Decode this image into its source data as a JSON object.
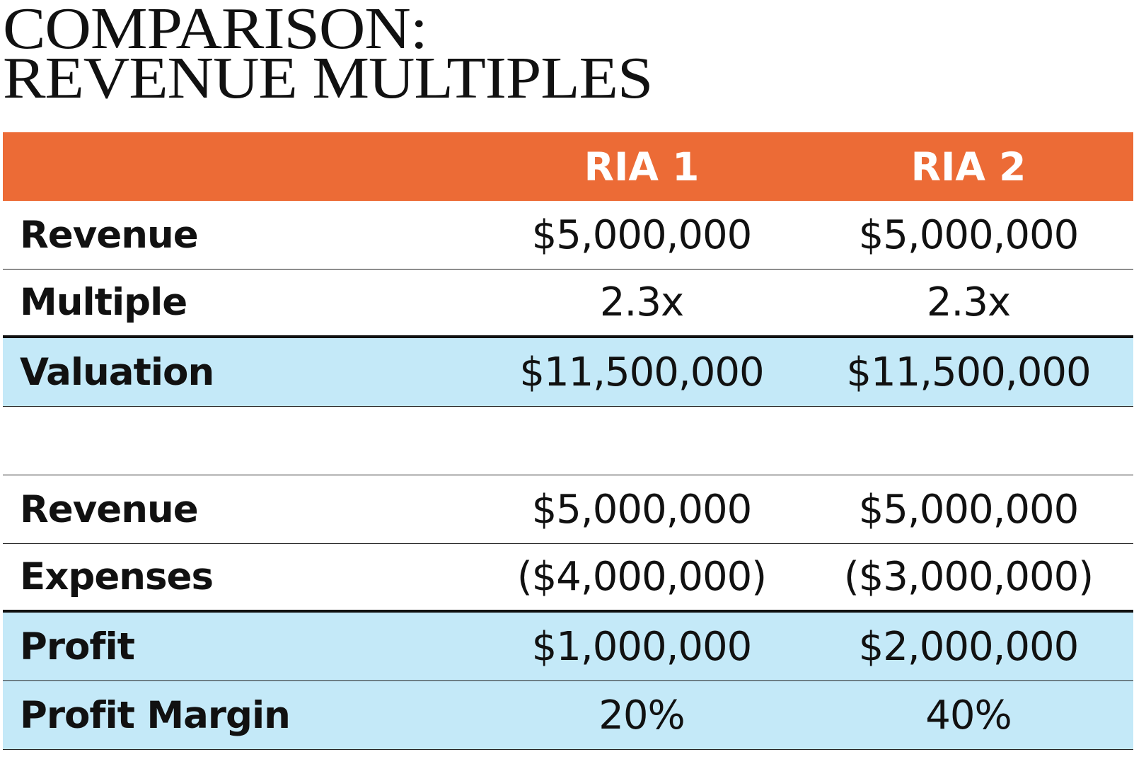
{
  "title": {
    "line1": "COMPARISON:",
    "line2": "REVENUE MULTIPLES"
  },
  "colors": {
    "header_bg": "#ec6b36",
    "highlight_bg": "#c4e9f8",
    "header_text": "#ffffff",
    "text": "#111111"
  },
  "columns": [
    "RIA 1",
    "RIA 2"
  ],
  "table1": [
    {
      "label": "Revenue",
      "ria1": "$5,000,000",
      "ria2": "$5,000,000"
    },
    {
      "label": "Multiple",
      "ria1": "2.3x",
      "ria2": "2.3x"
    },
    {
      "label": "Valuation",
      "ria1": "$11,500,000",
      "ria2": "$11,500,000"
    }
  ],
  "table2": [
    {
      "label": "Revenue",
      "ria1": "$5,000,000",
      "ria2": "$5,000,000"
    },
    {
      "label": "Expenses",
      "ria1": "($4,000,000)",
      "ria2": "($3,000,000)"
    },
    {
      "label": "Profit",
      "ria1": "$1,000,000",
      "ria2": "$2,000,000"
    },
    {
      "label": "Profit Margin",
      "ria1": "20%",
      "ria2": "40%"
    }
  ]
}
